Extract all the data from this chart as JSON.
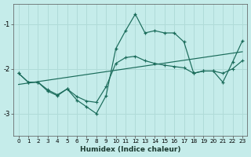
{
  "xlabel": "Humidex (Indice chaleur)",
  "bg_color": "#c5ecea",
  "grid_color": "#b0dbd8",
  "line_color": "#1a6b5a",
  "xlim": [
    -0.5,
    23.5
  ],
  "ylim": [
    -3.5,
    -0.55
  ],
  "yticks": [
    -3,
    -2,
    -1
  ],
  "xticks": [
    0,
    1,
    2,
    3,
    4,
    5,
    6,
    7,
    8,
    9,
    10,
    11,
    12,
    13,
    14,
    15,
    16,
    17,
    18,
    19,
    20,
    21,
    22,
    23
  ],
  "curve1_x": [
    0,
    1,
    2,
    3,
    4,
    5,
    6,
    7,
    8,
    9,
    10,
    11,
    12,
    13,
    14,
    15,
    16,
    17,
    18,
    19,
    20,
    21,
    22,
    23
  ],
  "curve1_y": [
    -2.1,
    -2.3,
    -2.3,
    -2.5,
    -2.6,
    -2.45,
    -2.7,
    -2.85,
    -3.0,
    -2.6,
    -1.55,
    -1.15,
    -0.78,
    -1.2,
    -1.15,
    -1.2,
    -1.2,
    -1.4,
    -2.1,
    -2.05,
    -2.05,
    -2.3,
    -1.85,
    -1.38
  ],
  "curve2_x": [
    0,
    1,
    2,
    3,
    4,
    5,
    6,
    7,
    8,
    9,
    10,
    11,
    12,
    13,
    14,
    15,
    16,
    17,
    18,
    19,
    20,
    21,
    22,
    23
  ],
  "curve2_y": [
    -2.1,
    -2.3,
    -2.3,
    -2.47,
    -2.58,
    -2.45,
    -2.62,
    -2.72,
    -2.75,
    -2.4,
    -1.88,
    -1.75,
    -1.72,
    -1.82,
    -1.88,
    -1.92,
    -1.95,
    -1.98,
    -2.1,
    -2.05,
    -2.05,
    -2.1,
    -2.0,
    -1.82
  ],
  "trend_x": [
    0,
    23
  ],
  "trend_y": [
    -2.35,
    -1.62
  ]
}
